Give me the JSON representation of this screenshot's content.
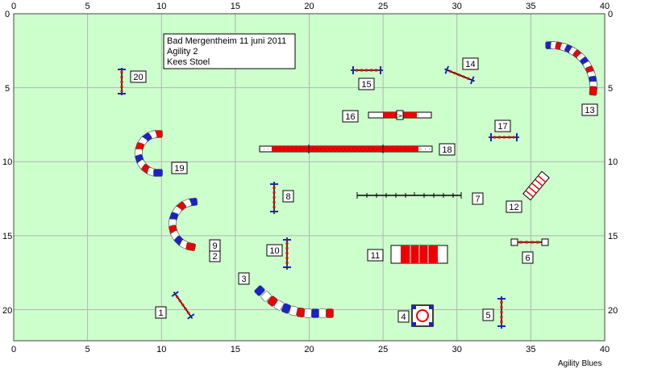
{
  "course": {
    "info_lines": [
      "Bad Mergentheim 11 juni 2011",
      "Agility 2",
      "Kees Stoel"
    ],
    "credit": "Agility Blues",
    "x_ticks": [
      "0",
      "5",
      "10",
      "15",
      "20",
      "25",
      "30",
      "35",
      "40"
    ],
    "y_ticks": [
      "0",
      "5",
      "10",
      "15",
      "20"
    ],
    "obstacle_labels": [
      "1",
      "2",
      "3",
      "4",
      "5",
      "6",
      "7",
      "8",
      "9",
      "10",
      "11",
      "12",
      "13",
      "14",
      "15",
      "16",
      "17",
      "18",
      "19",
      "20"
    ]
  },
  "colors": {
    "field": "#ccffcc",
    "grid": "#b4b4b4",
    "red": "#ee0000",
    "blue": "#1a22cc",
    "white": "#ffffff",
    "dark": "#000000"
  },
  "icons": {
    "jump": "hurdle-icon",
    "tunnel": "tunnel-icon",
    "table": "table-icon",
    "weave": "weave-poles-icon",
    "dogwalk": "dogwalk-icon",
    "seesaw": "seesaw-icon",
    "tire": "tire-icon",
    "long-jump": "long-jump-icon"
  }
}
